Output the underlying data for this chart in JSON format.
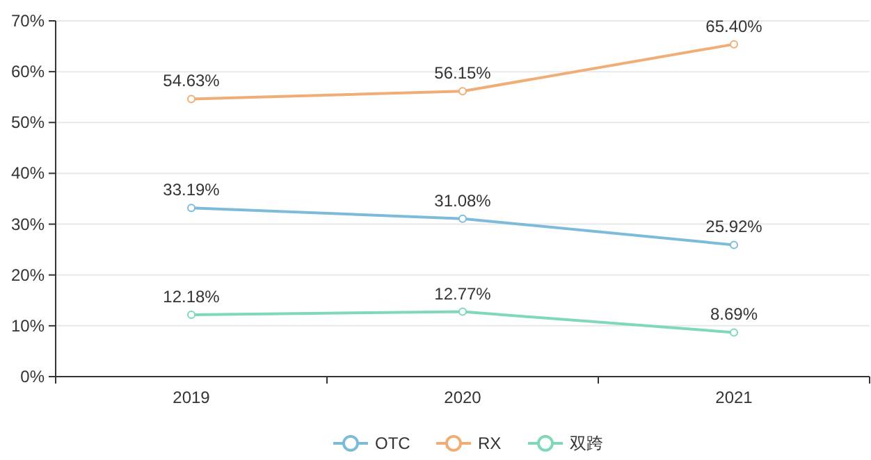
{
  "chart_data": {
    "type": "line",
    "categories": [
      "2019",
      "2020",
      "2021"
    ],
    "series": [
      {
        "name": "OTC",
        "color": "#7dbcd9",
        "values": [
          33.19,
          31.08,
          25.92
        ],
        "value_labels": [
          "33.19%",
          "31.08%",
          "25.92%"
        ]
      },
      {
        "name": "RX",
        "color": "#f0ad75",
        "values": [
          54.63,
          56.15,
          65.4
        ],
        "value_labels": [
          "54.63%",
          "56.15%",
          "65.40%"
        ]
      },
      {
        "name": "双跨",
        "color": "#7fd8b6",
        "values": [
          12.18,
          12.77,
          8.69
        ],
        "value_labels": [
          "12.18%",
          "12.77%",
          "8.69%"
        ]
      }
    ],
    "ylim": [
      0,
      70
    ],
    "yticks": [
      {
        "value": 0,
        "label": "0%"
      },
      {
        "value": 10,
        "label": "10%"
      },
      {
        "value": 20,
        "label": "20%"
      },
      {
        "value": 30,
        "label": "30%"
      },
      {
        "value": 40,
        "label": "40%"
      },
      {
        "value": 50,
        "label": "50%"
      },
      {
        "value": 60,
        "label": "60%"
      },
      {
        "value": 70,
        "label": "70%"
      }
    ],
    "grid": "y",
    "legend": "bottom",
    "marker": "circle",
    "line_style": "solid"
  }
}
